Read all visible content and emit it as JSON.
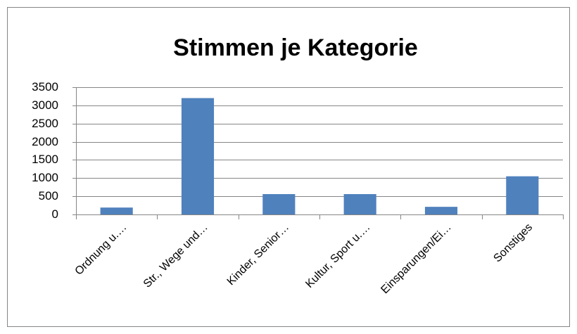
{
  "chart_data": {
    "type": "bar",
    "title": "Stimmen je Kategorie",
    "categories": [
      "Ordnung u.…",
      "Str., Wege und…",
      "Kinder, Senior…",
      "Kultur, Sport u.…",
      "Einsparungen/Ei…",
      "Sonstiges"
    ],
    "values": [
      190,
      3200,
      560,
      560,
      210,
      1050
    ],
    "color": "#4f81bd",
    "ylim": [
      0,
      3500
    ],
    "yticks": [
      0,
      500,
      1000,
      1500,
      2000,
      2500,
      3000,
      3500
    ],
    "grid": true
  }
}
